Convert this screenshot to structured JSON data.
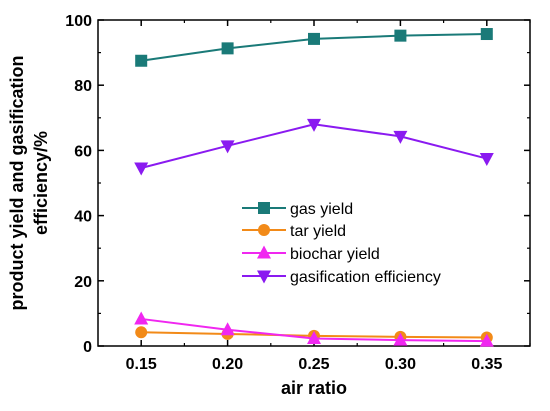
{
  "chart_data": {
    "type": "line",
    "x": [
      0.15,
      0.2,
      0.25,
      0.3,
      0.35
    ],
    "xtick_labels": [
      "0.15",
      "0.20",
      "0.25",
      "0.30",
      "0.35"
    ],
    "ytick_labels": [
      "0",
      "20",
      "40",
      "60",
      "80",
      "100"
    ],
    "yticks": [
      0,
      20,
      40,
      60,
      80,
      100
    ],
    "xlim": [
      0.125,
      0.375
    ],
    "ylim": [
      0,
      100
    ],
    "xlabel": "air ratio",
    "ylabel_line1": "product yield and gasification",
    "ylabel_line2": "efficiency/%",
    "grid": false,
    "legend_position": "center-right",
    "series": [
      {
        "name": "gas yield",
        "color": "#1a7a78",
        "marker": "square",
        "values": [
          87.5,
          91.3,
          94.2,
          95.2,
          95.7
        ]
      },
      {
        "name": "tar yield",
        "color": "#f28a18",
        "marker": "circle",
        "values": [
          4.2,
          3.7,
          3.1,
          2.8,
          2.6
        ]
      },
      {
        "name": "biochar yield",
        "color": "#f027f0",
        "marker": "triangle-up",
        "values": [
          8.3,
          5.0,
          2.3,
          1.8,
          1.5
        ]
      },
      {
        "name": "gasification efficiency",
        "color": "#8a1af0",
        "marker": "triangle-down",
        "values": [
          54.6,
          61.4,
          68.0,
          64.3,
          57.5
        ]
      }
    ]
  }
}
